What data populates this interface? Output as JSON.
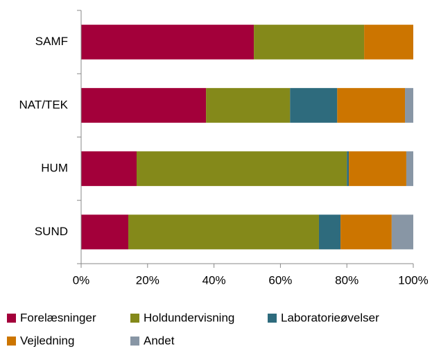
{
  "chart_data": {
    "type": "stacked_barh",
    "categories": [
      "SAMF",
      "NAT/TEK",
      "HUM",
      "SUND"
    ],
    "series": [
      {
        "name": "Forelæsninger",
        "color": "#a3003a",
        "values": [
          52,
          37.6,
          16.7,
          14.2
        ]
      },
      {
        "name": "Holdundervisning",
        "color": "#84891a",
        "values": [
          33.2,
          25.3,
          63.3,
          57.4
        ]
      },
      {
        "name": "Laboratorieøvelser",
        "color": "#2e6b7d",
        "values": [
          0,
          14.2,
          0.6,
          6.5
        ]
      },
      {
        "name": "Vejledning",
        "color": "#cc7500",
        "values": [
          14.8,
          20.4,
          17.3,
          15.4
        ]
      },
      {
        "name": "Andet",
        "color": "#8896a5",
        "values": [
          0,
          2.5,
          2.1,
          6.5
        ]
      }
    ],
    "xlim": [
      0,
      100
    ],
    "xticks": [
      {
        "value": 0,
        "label": "0%"
      },
      {
        "value": 20,
        "label": "20%"
      },
      {
        "value": 40,
        "label": "40%"
      },
      {
        "value": 60,
        "label": "60%"
      },
      {
        "value": 80,
        "label": "80%"
      },
      {
        "value": 100,
        "label": "100%"
      }
    ],
    "legend": "bottom"
  }
}
